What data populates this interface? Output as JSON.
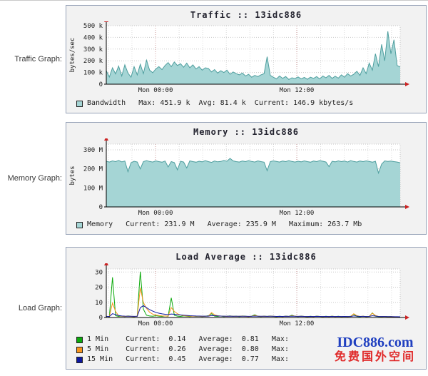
{
  "page": {
    "labels": {
      "traffic": "Traffic Graph:",
      "memory": "Memory Graph:",
      "load": "Load Graph:"
    }
  },
  "watermark": {
    "line1": "IDC886.com",
    "line2": "免费国外空间",
    "color1": "#1f3fc0",
    "color2": "#e02a2a"
  },
  "chart_data": [
    {
      "id": "traffic",
      "type": "area",
      "title": "Traffic :: 13idc886",
      "ylabel": "bytes/sec",
      "ylim": [
        0,
        500
      ],
      "unit": "kbytes/s",
      "yticks": [
        {
          "value": 0,
          "label": "0"
        },
        {
          "value": 100,
          "label": "100 k"
        },
        {
          "value": 200,
          "label": "200 k"
        },
        {
          "value": 300,
          "label": "300 k"
        },
        {
          "value": 400,
          "label": "400 k"
        },
        {
          "value": 500,
          "label": "500 k"
        }
      ],
      "xticks": [
        {
          "pos": 0.1675,
          "label": "Mon 00:00"
        },
        {
          "pos": 0.648,
          "label": "Mon 12:00"
        }
      ],
      "grid": {
        "minor_offset": 0.0069,
        "minor_step": 0.0803
      },
      "series": [
        {
          "name": "Bandwidth",
          "type": "area",
          "fill": "#a5d5d5",
          "stroke": "#4e9e9e",
          "values": [
            115,
            62,
            140,
            88,
            155,
            70,
            165,
            95,
            60,
            150,
            80,
            170,
            90,
            205,
            120,
            98,
            130,
            150,
            125,
            160,
            185,
            150,
            190,
            160,
            175,
            145,
            180,
            140,
            165,
            130,
            150,
            120,
            140,
            135,
            105,
            125,
            95,
            115,
            100,
            120,
            85,
            105,
            90,
            80,
            95,
            70,
            85,
            60,
            75,
            65,
            80,
            90,
            235,
            75,
            60,
            45,
            70,
            50,
            65,
            40,
            55,
            48,
            62,
            45,
            58,
            42,
            60,
            50,
            65,
            45,
            70,
            55,
            75,
            50,
            68,
            52,
            80,
            60,
            90,
            70,
            85,
            110,
            75,
            140,
            90,
            180,
            120,
            260,
            150,
            340,
            200,
            452,
            260,
            380,
            160,
            147
          ]
        }
      ],
      "legend": [
        {
          "color": "#a5d5d5",
          "text": "Bandwidth   Max: 451.9 k  Avg: 81.4 k  Current: 146.9 kbytes/s"
        }
      ],
      "stats": {
        "max": "451.9 k",
        "avg": "81.4 k",
        "current": "146.9 kbytes/s"
      }
    },
    {
      "id": "memory",
      "type": "area",
      "title": "Memory :: 13idc886",
      "ylabel": "bytes",
      "ylim": [
        0,
        330
      ],
      "unit": "M",
      "yticks": [
        {
          "value": 0,
          "label": "0"
        },
        {
          "value": 100,
          "label": "100 M"
        },
        {
          "value": 200,
          "label": "200 M"
        },
        {
          "value": 300,
          "label": "300 M"
        }
      ],
      "xticks": [
        {
          "pos": 0.1675,
          "label": "Mon 00:00"
        },
        {
          "pos": 0.648,
          "label": "Mon 12:00"
        }
      ],
      "grid": {
        "minor_offset": 0.0069,
        "minor_step": 0.0803
      },
      "series": [
        {
          "name": "Memory",
          "type": "area",
          "fill": "#a5d5d5",
          "stroke": "#4e9e9e",
          "values": [
            240,
            236,
            242,
            238,
            244,
            237,
            241,
            185,
            232,
            240,
            236,
            200,
            238,
            243,
            239,
            236,
            242,
            238,
            235,
            241,
            210,
            238,
            233,
            195,
            240,
            236,
            205,
            242,
            238,
            235,
            240,
            237,
            243,
            238,
            234,
            241,
            237,
            239,
            244,
            240,
            255,
            242,
            238,
            236,
            241,
            238,
            243,
            239,
            236,
            242,
            238,
            235,
            190,
            238,
            242,
            239,
            236,
            241,
            238,
            243,
            239,
            236,
            240,
            237,
            242,
            238,
            235,
            241,
            238,
            243,
            240,
            236,
            212,
            240,
            237,
            242,
            238,
            241,
            236,
            243,
            239,
            236,
            241,
            238,
            242,
            239,
            235,
            240,
            178,
            225,
            242,
            239,
            241,
            238,
            236,
            232
          ]
        }
      ],
      "legend": [
        {
          "color": "#a5d5d5",
          "text": "Memory   Current: 231.9 M   Average: 235.9 M   Maximum: 263.7 Mb"
        }
      ],
      "stats": {
        "current": "231.9 M",
        "average": "235.9 M",
        "maximum": "263.7 Mb"
      }
    },
    {
      "id": "load",
      "type": "line",
      "title": "Load Average :: 13idc886",
      "ylabel": "",
      "ylim": [
        0,
        32
      ],
      "unit": "",
      "yticks": [
        {
          "value": 0,
          "label": "0"
        },
        {
          "value": 10,
          "label": "10"
        },
        {
          "value": 20,
          "label": "20"
        },
        {
          "value": 30,
          "label": "30"
        }
      ],
      "xticks": [
        {
          "pos": 0.1675,
          "label": "Mon 00:00"
        },
        {
          "pos": 0.648,
          "label": "Mon 12:00"
        }
      ],
      "grid": {
        "minor_offset": 0.0069,
        "minor_step": 0.0803
      },
      "series": [
        {
          "name": "1 Min",
          "type": "line",
          "stroke": "#0caa0c",
          "values": [
            0.8,
            0.5,
            26.5,
            1.2,
            0.7,
            0.9,
            0.6,
            1.1,
            0.7,
            0.5,
            0.9,
            30.2,
            5.5,
            1.5,
            1.0,
            0.8,
            1.2,
            0.9,
            0.7,
            1.0,
            0.8,
            13.0,
            1.5,
            0.9,
            0.7,
            1.1,
            0.8,
            0.6,
            1.0,
            0.7,
            0.9,
            0.6,
            0.8,
            1.2,
            2.5,
            0.9,
            0.7,
            1.0,
            0.6,
            0.8,
            1.1,
            0.7,
            0.9,
            0.6,
            1.0,
            0.8,
            0.6,
            0.9,
            1.8,
            0.8,
            0.6,
            0.9,
            0.7,
            1.0,
            0.7,
            0.5,
            0.8,
            0.6,
            0.9,
            0.7,
            1.5,
            0.8,
            0.6,
            0.9,
            0.7,
            0.5,
            0.8,
            0.6,
            0.9,
            0.7,
            0.5,
            0.8,
            0.6,
            0.9,
            0.6,
            0.8,
            0.5,
            0.7,
            0.6,
            0.8,
            2.2,
            0.7,
            0.5,
            0.8,
            0.6,
            0.7,
            3.0,
            0.9,
            0.6,
            0.5,
            0.7,
            0.5,
            0.6,
            0.4,
            0.3,
            0.14
          ]
        },
        {
          "name": "5 Min",
          "type": "line",
          "stroke": "#f7941d",
          "values": [
            0.7,
            0.6,
            9.5,
            4.0,
            1.2,
            0.8,
            0.7,
            0.9,
            0.7,
            0.6,
            0.8,
            19.5,
            10.0,
            6.0,
            3.5,
            2.2,
            1.6,
            1.3,
            1.1,
            1.0,
            0.9,
            6.5,
            4.0,
            2.5,
            1.6,
            1.2,
            1.0,
            0.9,
            0.8,
            0.9,
            0.8,
            0.7,
            0.8,
            0.9,
            3.2,
            1.8,
            1.2,
            0.9,
            0.8,
            0.7,
            0.9,
            0.8,
            0.7,
            0.8,
            0.9,
            0.7,
            0.6,
            0.8,
            1.4,
            0.9,
            0.7,
            0.8,
            0.7,
            0.9,
            0.8,
            0.6,
            0.7,
            0.6,
            0.8,
            0.7,
            1.2,
            0.9,
            0.7,
            0.8,
            0.7,
            0.6,
            0.7,
            0.6,
            0.8,
            0.7,
            0.6,
            0.7,
            0.6,
            0.8,
            0.6,
            0.7,
            0.6,
            0.7,
            0.6,
            0.7,
            2.5,
            1.2,
            0.7,
            0.8,
            0.6,
            0.7,
            2.8,
            1.3,
            0.7,
            0.6,
            0.7,
            0.5,
            0.6,
            0.5,
            0.4,
            0.26
          ]
        },
        {
          "name": "15 Min",
          "type": "line",
          "stroke": "#0d17a0",
          "values": [
            0.7,
            0.65,
            2.5,
            2.0,
            1.3,
            1.0,
            0.9,
            0.85,
            0.8,
            0.75,
            0.8,
            6.5,
            7.8,
            6.5,
            5.2,
            4.2,
            3.4,
            2.8,
            2.4,
            2.1,
            1.9,
            2.3,
            2.1,
            1.9,
            1.7,
            1.5,
            1.35,
            1.2,
            1.1,
            1.0,
            0.95,
            0.9,
            0.88,
            0.9,
            1.3,
            1.2,
            1.05,
            0.95,
            0.9,
            0.85,
            0.9,
            0.85,
            0.8,
            0.82,
            0.85,
            0.8,
            0.75,
            0.8,
            0.95,
            0.85,
            0.78,
            0.8,
            0.75,
            0.82,
            0.78,
            0.72,
            0.75,
            0.7,
            0.78,
            0.74,
            0.9,
            0.82,
            0.75,
            0.78,
            0.72,
            0.68,
            0.72,
            0.68,
            0.75,
            0.7,
            0.66,
            0.7,
            0.66,
            0.7,
            0.66,
            0.72,
            0.66,
            0.7,
            0.64,
            0.68,
            1.1,
            0.9,
            0.72,
            0.75,
            0.68,
            0.7,
            1.2,
            0.95,
            0.72,
            0.66,
            0.68,
            0.6,
            0.58,
            0.54,
            0.5,
            0.45
          ]
        }
      ],
      "legend": [
        {
          "color": "#0caa0c",
          "text": "1 Min    Current:  0.14   Average:  0.81   Max:"
        },
        {
          "color": "#f7941d",
          "text": "5 Min    Current:  0.26   Average:  0.80   Max:"
        },
        {
          "color": "#0d17a0",
          "text": "15 Min   Current:  0.45   Average:  0.77   Max:"
        }
      ],
      "stats": {
        "1min": {
          "current": "0.14",
          "average": "0.81"
        },
        "5min": {
          "current": "0.26",
          "average": "0.80"
        },
        "15min": {
          "current": "0.45",
          "average": "0.77"
        }
      }
    }
  ]
}
